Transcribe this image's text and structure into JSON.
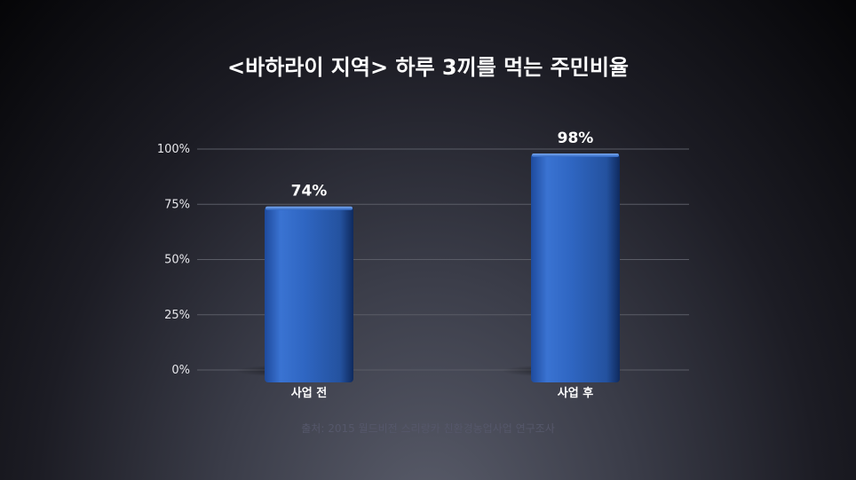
{
  "slide": {
    "title": "<바하라이 지역> 하루 3끼를 먹는 주민비율",
    "source": "출처: 2015 월드비전 스리랑카 친환경농업사업 연구조사"
  },
  "chart_data": {
    "type": "bar",
    "title": "<바하라이 지역> 하루 3끼를 먹는 주민비율",
    "categories": [
      "사업 전",
      "사업 후"
    ],
    "values": [
      74,
      98
    ],
    "value_labels": [
      "74%",
      "98%"
    ],
    "xlabel": "",
    "ylabel": "",
    "ylim": [
      0,
      100
    ],
    "yticks": [
      0,
      25,
      50,
      75,
      100
    ],
    "ytick_labels": [
      "0%",
      "25%",
      "50%",
      "75%",
      "100%"
    ],
    "grid": true,
    "legend": "none",
    "bar_color": "#2f66c2",
    "bar_highlight": "#5d93e6",
    "bar_shadow": "#1b3f86"
  }
}
